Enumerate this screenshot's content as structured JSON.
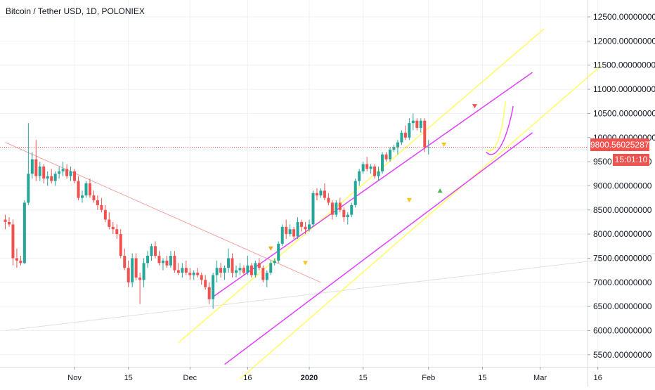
{
  "header": {
    "symbol_title": "Bitcoin / Tether USD, 1D, POLONIEX"
  },
  "current_price": {
    "label": "9800.56025287",
    "value": 9800.56,
    "color": "#ef5350"
  },
  "countdown": {
    "label": "15:01:10"
  },
  "colors": {
    "up": "#26a69a",
    "down": "#ef5350",
    "channel_outer": "#ffff66",
    "channel_inner": "#e040fb",
    "grid": "#eef1f5",
    "axis_text": "#131722"
  },
  "chart_data": {
    "type": "candlestick",
    "title": "Bitcoin / Tether USD, 1D, POLONIEX",
    "xlabel": "",
    "ylabel": "",
    "ylim": [
      5250,
      12850
    ],
    "y_ticks": [
      5500,
      6000,
      6500,
      7000,
      7500,
      8000,
      8500,
      9000,
      9500,
      10000,
      10500,
      11000,
      11500,
      12000,
      12500
    ],
    "y_tick_labels": [
      "5500.00000000",
      "6000.00000000",
      "6500.00000000",
      "7000.00000000",
      "7500.00000000",
      "8000.00000000",
      "8500.00000000",
      "9000.00000000",
      "9500.00000000",
      "10000.00000000",
      "10500.00000000",
      "11000.00000000",
      "11500.00000000",
      "12000.00000000",
      "12500.00000000"
    ],
    "x_start": "2019-10-14",
    "x_ticks": [
      {
        "date": "2019-11-01",
        "label": "Nov"
      },
      {
        "date": "2019-11-15",
        "label": "15"
      },
      {
        "date": "2019-12-01",
        "label": "Dec"
      },
      {
        "date": "2019-12-16",
        "label": "16"
      },
      {
        "date": "2020-01-01",
        "label": "2020"
      },
      {
        "date": "2020-01-15",
        "label": "15"
      },
      {
        "date": "2020-02-01",
        "label": "Feb"
      },
      {
        "date": "2020-02-15",
        "label": "15"
      },
      {
        "date": "2020-03-01",
        "label": "Mar"
      },
      {
        "date": "2020-03-16",
        "label": "16"
      }
    ],
    "grid": true,
    "current_price": 9800.56,
    "candles": [
      {
        "o": 8300,
        "h": 8400,
        "l": 8100,
        "c": 8250
      },
      {
        "o": 8250,
        "h": 8350,
        "l": 8150,
        "c": 8200
      },
      {
        "o": 8200,
        "h": 8300,
        "l": 7350,
        "c": 7500
      },
      {
        "o": 7500,
        "h": 7700,
        "l": 7300,
        "c": 7450
      },
      {
        "o": 7450,
        "h": 7550,
        "l": 7350,
        "c": 7400
      },
      {
        "o": 7400,
        "h": 8700,
        "l": 7380,
        "c": 8650
      },
      {
        "o": 8650,
        "h": 10300,
        "l": 8600,
        "c": 9250
      },
      {
        "o": 9250,
        "h": 9700,
        "l": 9150,
        "c": 9550
      },
      {
        "o": 9550,
        "h": 9950,
        "l": 9100,
        "c": 9200
      },
      {
        "o": 9200,
        "h": 9500,
        "l": 9100,
        "c": 9400
      },
      {
        "o": 9400,
        "h": 9450,
        "l": 9050,
        "c": 9150
      },
      {
        "o": 9150,
        "h": 9300,
        "l": 9000,
        "c": 9200
      },
      {
        "o": 9200,
        "h": 9350,
        "l": 9050,
        "c": 9100
      },
      {
        "o": 9100,
        "h": 9300,
        "l": 9000,
        "c": 9250
      },
      {
        "o": 9250,
        "h": 9400,
        "l": 9150,
        "c": 9300
      },
      {
        "o": 9300,
        "h": 9500,
        "l": 9200,
        "c": 9350
      },
      {
        "o": 9350,
        "h": 9450,
        "l": 9150,
        "c": 9200
      },
      {
        "o": 9200,
        "h": 9400,
        "l": 9100,
        "c": 9300
      },
      {
        "o": 9300,
        "h": 9350,
        "l": 9050,
        "c": 9100
      },
      {
        "o": 9100,
        "h": 9200,
        "l": 8700,
        "c": 8750
      },
      {
        "o": 8750,
        "h": 8900,
        "l": 8650,
        "c": 8800
      },
      {
        "o": 8800,
        "h": 9100,
        "l": 8750,
        "c": 9050
      },
      {
        "o": 9050,
        "h": 9150,
        "l": 8750,
        "c": 8800
      },
      {
        "o": 8800,
        "h": 8900,
        "l": 8650,
        "c": 8700
      },
      {
        "o": 8700,
        "h": 8800,
        "l": 8500,
        "c": 8600
      },
      {
        "o": 8600,
        "h": 8750,
        "l": 8450,
        "c": 8500
      },
      {
        "o": 8500,
        "h": 8600,
        "l": 8250,
        "c": 8300
      },
      {
        "o": 8300,
        "h": 8450,
        "l": 8100,
        "c": 8150
      },
      {
        "o": 8150,
        "h": 8250,
        "l": 8000,
        "c": 8100
      },
      {
        "o": 8100,
        "h": 8200,
        "l": 7900,
        "c": 8000
      },
      {
        "o": 8000,
        "h": 8100,
        "l": 7500,
        "c": 7550
      },
      {
        "o": 7550,
        "h": 7700,
        "l": 7250,
        "c": 7300
      },
      {
        "o": 7300,
        "h": 7450,
        "l": 6900,
        "c": 7000
      },
      {
        "o": 7000,
        "h": 7600,
        "l": 6900,
        "c": 7500
      },
      {
        "o": 7500,
        "h": 7600,
        "l": 7050,
        "c": 7100
      },
      {
        "o": 7100,
        "h": 7200,
        "l": 6550,
        "c": 7050
      },
      {
        "o": 7050,
        "h": 7500,
        "l": 6900,
        "c": 7400
      },
      {
        "o": 7400,
        "h": 7650,
        "l": 7300,
        "c": 7550
      },
      {
        "o": 7550,
        "h": 7800,
        "l": 7450,
        "c": 7750
      },
      {
        "o": 7750,
        "h": 7850,
        "l": 7500,
        "c": 7550
      },
      {
        "o": 7550,
        "h": 7650,
        "l": 7350,
        "c": 7400
      },
      {
        "o": 7400,
        "h": 7500,
        "l": 7250,
        "c": 7450
      },
      {
        "o": 7450,
        "h": 7550,
        "l": 7300,
        "c": 7350
      },
      {
        "o": 7350,
        "h": 7650,
        "l": 7300,
        "c": 7550
      },
      {
        "o": 7550,
        "h": 7650,
        "l": 7200,
        "c": 7250
      },
      {
        "o": 7250,
        "h": 7400,
        "l": 7150,
        "c": 7200
      },
      {
        "o": 7200,
        "h": 7400,
        "l": 7100,
        "c": 7300
      },
      {
        "o": 7300,
        "h": 7450,
        "l": 7150,
        "c": 7200
      },
      {
        "o": 7200,
        "h": 7300,
        "l": 7050,
        "c": 7150
      },
      {
        "o": 7150,
        "h": 7250,
        "l": 7050,
        "c": 7200
      },
      {
        "o": 7200,
        "h": 7300,
        "l": 7100,
        "c": 7150
      },
      {
        "o": 7150,
        "h": 7200,
        "l": 6950,
        "c": 7050
      },
      {
        "o": 7050,
        "h": 7150,
        "l": 6850,
        "c": 6900
      },
      {
        "o": 6900,
        "h": 7000,
        "l": 6550,
        "c": 6650
      },
      {
        "o": 6650,
        "h": 7200,
        "l": 6450,
        "c": 7150
      },
      {
        "o": 7150,
        "h": 7450,
        "l": 7000,
        "c": 7300
      },
      {
        "o": 7300,
        "h": 7400,
        "l": 7100,
        "c": 7200
      },
      {
        "o": 7200,
        "h": 7350,
        "l": 7050,
        "c": 7300
      },
      {
        "o": 7300,
        "h": 7700,
        "l": 7200,
        "c": 7500
      },
      {
        "o": 7500,
        "h": 7600,
        "l": 7100,
        "c": 7200
      },
      {
        "o": 7200,
        "h": 7350,
        "l": 7100,
        "c": 7250
      },
      {
        "o": 7250,
        "h": 7400,
        "l": 7150,
        "c": 7300
      },
      {
        "o": 7300,
        "h": 7350,
        "l": 7150,
        "c": 7200
      },
      {
        "o": 7200,
        "h": 7550,
        "l": 7150,
        "c": 7350
      },
      {
        "o": 7350,
        "h": 7400,
        "l": 7100,
        "c": 7150
      },
      {
        "o": 7150,
        "h": 7450,
        "l": 7100,
        "c": 7400
      },
      {
        "o": 7400,
        "h": 7500,
        "l": 7250,
        "c": 7300
      },
      {
        "o": 7300,
        "h": 7350,
        "l": 7000,
        "c": 7050
      },
      {
        "o": 7050,
        "h": 7250,
        "l": 6900,
        "c": 7200
      },
      {
        "o": 7200,
        "h": 7450,
        "l": 7150,
        "c": 7400
      },
      {
        "o": 7400,
        "h": 7500,
        "l": 7350,
        "c": 7450
      },
      {
        "o": 7450,
        "h": 7850,
        "l": 7400,
        "c": 7800
      },
      {
        "o": 7800,
        "h": 8200,
        "l": 7750,
        "c": 8150
      },
      {
        "o": 8150,
        "h": 8300,
        "l": 7900,
        "c": 8000
      },
      {
        "o": 8000,
        "h": 8200,
        "l": 7950,
        "c": 8100
      },
      {
        "o": 8100,
        "h": 8150,
        "l": 7900,
        "c": 7950
      },
      {
        "o": 7950,
        "h": 8350,
        "l": 7900,
        "c": 8250
      },
      {
        "o": 8250,
        "h": 8300,
        "l": 8050,
        "c": 8150
      },
      {
        "o": 8150,
        "h": 8250,
        "l": 8000,
        "c": 8100
      },
      {
        "o": 8100,
        "h": 8300,
        "l": 8050,
        "c": 8200
      },
      {
        "o": 8200,
        "h": 8900,
        "l": 8150,
        "c": 8850
      },
      {
        "o": 8850,
        "h": 8950,
        "l": 8700,
        "c": 8800
      },
      {
        "o": 8800,
        "h": 8950,
        "l": 8750,
        "c": 8900
      },
      {
        "o": 8900,
        "h": 9050,
        "l": 8700,
        "c": 8750
      },
      {
        "o": 8750,
        "h": 8850,
        "l": 8600,
        "c": 8650
      },
      {
        "o": 8650,
        "h": 8700,
        "l": 8300,
        "c": 8400
      },
      {
        "o": 8400,
        "h": 8700,
        "l": 8350,
        "c": 8650
      },
      {
        "o": 8650,
        "h": 8750,
        "l": 8450,
        "c": 8500
      },
      {
        "o": 8500,
        "h": 8550,
        "l": 8250,
        "c": 8350
      },
      {
        "o": 8350,
        "h": 8450,
        "l": 8200,
        "c": 8400
      },
      {
        "o": 8400,
        "h": 8650,
        "l": 8350,
        "c": 8600
      },
      {
        "o": 8600,
        "h": 9150,
        "l": 8550,
        "c": 9100
      },
      {
        "o": 9100,
        "h": 9350,
        "l": 9000,
        "c": 9300
      },
      {
        "o": 9300,
        "h": 9500,
        "l": 9250,
        "c": 9450
      },
      {
        "o": 9450,
        "h": 9600,
        "l": 9300,
        "c": 9350
      },
      {
        "o": 9350,
        "h": 9450,
        "l": 9250,
        "c": 9400
      },
      {
        "o": 9400,
        "h": 9450,
        "l": 9150,
        "c": 9200
      },
      {
        "o": 9200,
        "h": 9400,
        "l": 9100,
        "c": 9300
      },
      {
        "o": 9300,
        "h": 9700,
        "l": 9250,
        "c": 9650
      },
      {
        "o": 9650,
        "h": 9700,
        "l": 9500,
        "c": 9550
      },
      {
        "o": 9550,
        "h": 9800,
        "l": 9500,
        "c": 9750
      },
      {
        "o": 9750,
        "h": 9850,
        "l": 9700,
        "c": 9800
      },
      {
        "o": 9800,
        "h": 9950,
        "l": 9650,
        "c": 9900
      },
      {
        "o": 9900,
        "h": 10150,
        "l": 9850,
        "c": 10100
      },
      {
        "o": 10100,
        "h": 10250,
        "l": 9950,
        "c": 10000
      },
      {
        "o": 10000,
        "h": 10400,
        "l": 9950,
        "c": 10300
      },
      {
        "o": 10300,
        "h": 10500,
        "l": 10150,
        "c": 10350
      },
      {
        "o": 10350,
        "h": 10400,
        "l": 10150,
        "c": 10200
      },
      {
        "o": 10200,
        "h": 10400,
        "l": 10100,
        "c": 10350
      },
      {
        "o": 10350,
        "h": 10400,
        "l": 9700,
        "c": 9800
      },
      {
        "o": 9800,
        "h": 9950,
        "l": 9650,
        "c": 9800
      }
    ],
    "annotations": {
      "channel_outer_yellow": [
        {
          "from": [
            "2019-11-28",
            5750
          ],
          "to": [
            "2020-03-02",
            12250
          ]
        },
        {
          "from": [
            "2019-12-14",
            5000
          ],
          "to": [
            "2020-03-17",
            11500
          ]
        }
      ],
      "channel_inner_magenta": [
        {
          "from": [
            "2019-12-07",
            6700
          ],
          "to": [
            "2020-02-28",
            11350
          ]
        },
        {
          "from": [
            "2019-12-10",
            5300
          ],
          "to": [
            "2020-02-28",
            10100
          ]
        }
      ],
      "trend_lines": [
        {
          "from": [
            "2019-10-14",
            9900
          ],
          "to": [
            "2020-01-04",
            7000
          ],
          "color": "#f2a3a3"
        },
        {
          "from": [
            "2019-10-14",
            6000
          ],
          "to": [
            "2020-03-31",
            7600
          ],
          "color": "#e0e0e0"
        }
      ],
      "signal_markers": [
        {
          "date": "2019-12-22",
          "price": 7700,
          "kind": "down",
          "color": "#f5a623"
        },
        {
          "date": "2019-12-31",
          "price": 7400,
          "kind": "down",
          "color": "#f5c518"
        },
        {
          "date": "2020-01-27",
          "price": 8700,
          "kind": "down",
          "color": "#f5c518"
        },
        {
          "date": "2020-02-04",
          "price": 8900,
          "kind": "up",
          "color": "#4caf50"
        },
        {
          "date": "2020-02-05",
          "price": 9850,
          "kind": "down",
          "color": "#f5c518"
        },
        {
          "date": "2020-02-13",
          "price": 10650,
          "kind": "down",
          "color": "#ef5350"
        }
      ],
      "projection_curves": [
        {
          "points": [
            [
              "2020-02-16",
              9700
            ],
            [
              "2020-02-18",
              9520
            ],
            [
              "2020-02-21",
              9800
            ],
            [
              "2020-02-23",
              10650
            ]
          ],
          "color": "#e040fb"
        },
        {
          "points": [
            [
              "2020-02-16",
              9750
            ],
            [
              "2020-02-18",
              9620
            ],
            [
              "2020-02-20",
              9950
            ],
            [
              "2020-02-21",
              10750
            ]
          ],
          "color": "#ffff66"
        }
      ]
    }
  }
}
